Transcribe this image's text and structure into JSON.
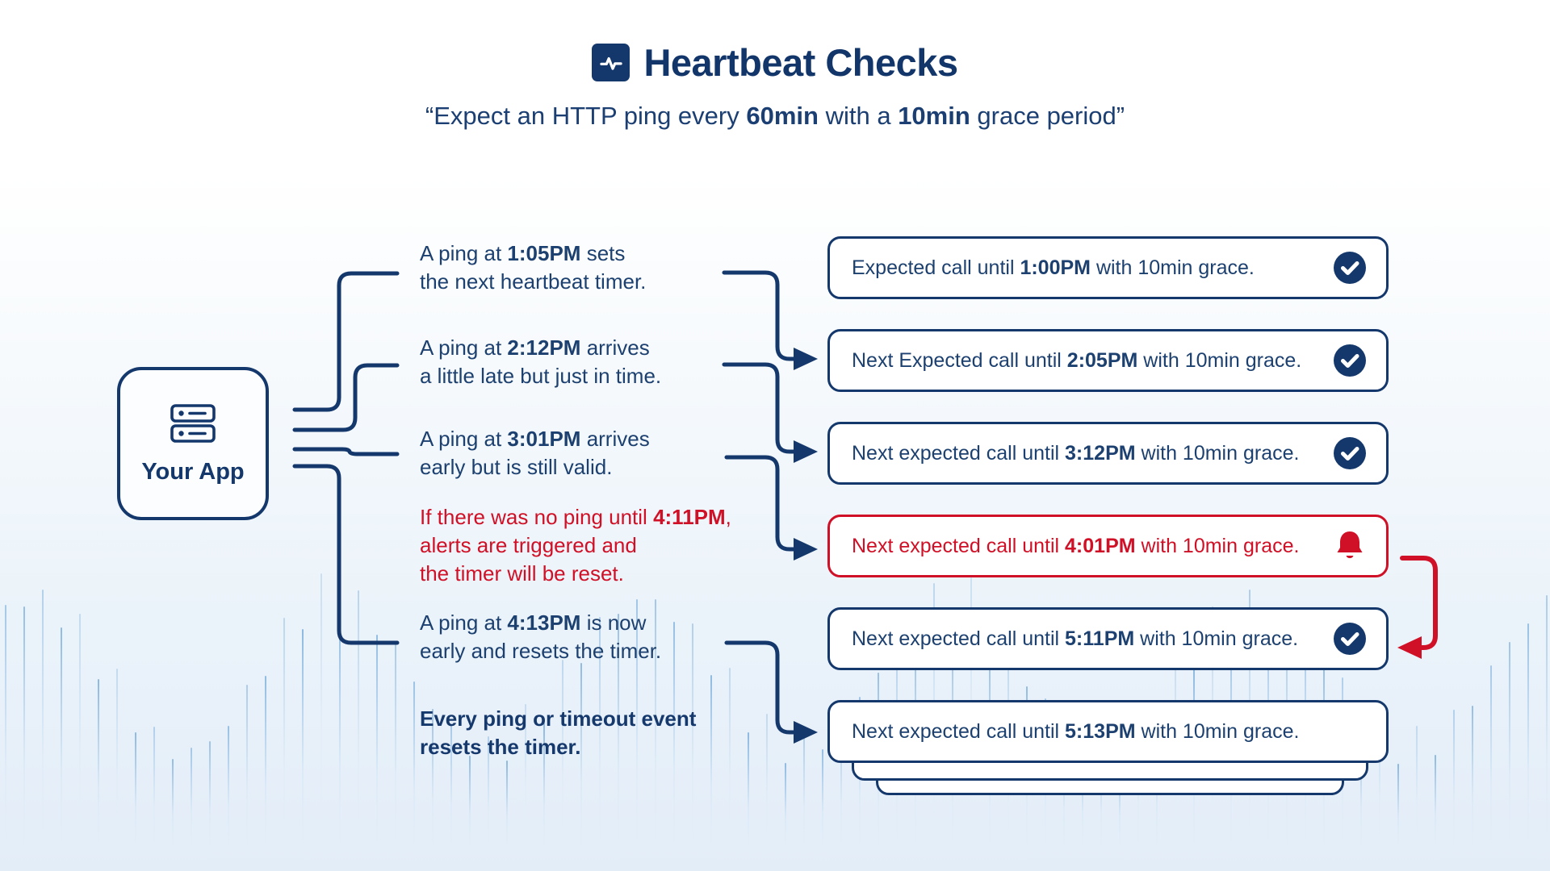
{
  "header": {
    "title": "Heartbeat Checks",
    "icon": "heartbeat-pulse-icon",
    "subtitle": {
      "p1": "“Expect an HTTP ping every ",
      "b1": "60min",
      "p2": " with a ",
      "b2": "10min",
      "p3": " grace period”"
    }
  },
  "app_box": {
    "label": "Your App",
    "icon": "server-icon"
  },
  "notes": [
    {
      "pre": "A ping at ",
      "time": "1:05PM",
      "post": " sets",
      "line2": "the next heartbeat timer.",
      "line3": "",
      "style": "normal"
    },
    {
      "pre": "A ping at ",
      "time": "2:12PM",
      "post": " arrives",
      "line2": "a little late but just in time.",
      "line3": "",
      "style": "normal"
    },
    {
      "pre": "A ping at ",
      "time": "3:01PM",
      "post": " arrives",
      "line2": "early but is still valid.",
      "line3": "",
      "style": "normal"
    },
    {
      "pre": "If there was no ping until ",
      "time": "4:11PM",
      "post": ",",
      "line2": "alerts are triggered and",
      "line3": "the timer will be reset.",
      "style": "alert"
    },
    {
      "pre": "A ping at ",
      "time": "4:13PM",
      "post": " is now",
      "line2": "early and resets the timer.",
      "line3": "",
      "style": "normal"
    },
    {
      "pre": "Every ping or timeout event",
      "time": "",
      "post": "",
      "line2": "resets the timer.",
      "line3": "",
      "style": "bold"
    }
  ],
  "status_boxes": [
    {
      "pre": "Expected call until ",
      "time": "1:00PM",
      "post": " with 10min grace.",
      "icon": "check-circle",
      "variant": "ok"
    },
    {
      "pre": "Next Expected call until ",
      "time": "2:05PM",
      "post": " with 10min grace.",
      "icon": "check-circle",
      "variant": "ok"
    },
    {
      "pre": "Next expected call until ",
      "time": "3:12PM",
      "post": " with 10min grace.",
      "icon": "check-circle",
      "variant": "ok"
    },
    {
      "pre": "Next expected call until ",
      "time": "4:01PM",
      "post": " with 10min grace.",
      "icon": "bell",
      "variant": "alert"
    },
    {
      "pre": "Next expected call until ",
      "time": "5:11PM",
      "post": " with 10min grace.",
      "icon": "check-circle",
      "variant": "ok"
    },
    {
      "pre": "Next expected call until ",
      "time": "5:13PM",
      "post": " with 10min grace.",
      "icon": "none",
      "variant": "ok"
    }
  ],
  "colors": {
    "navy": "#14386c",
    "red": "#d01026",
    "bar_blue": "#6ea6d8",
    "bg_bottom": "#e3edf8"
  }
}
